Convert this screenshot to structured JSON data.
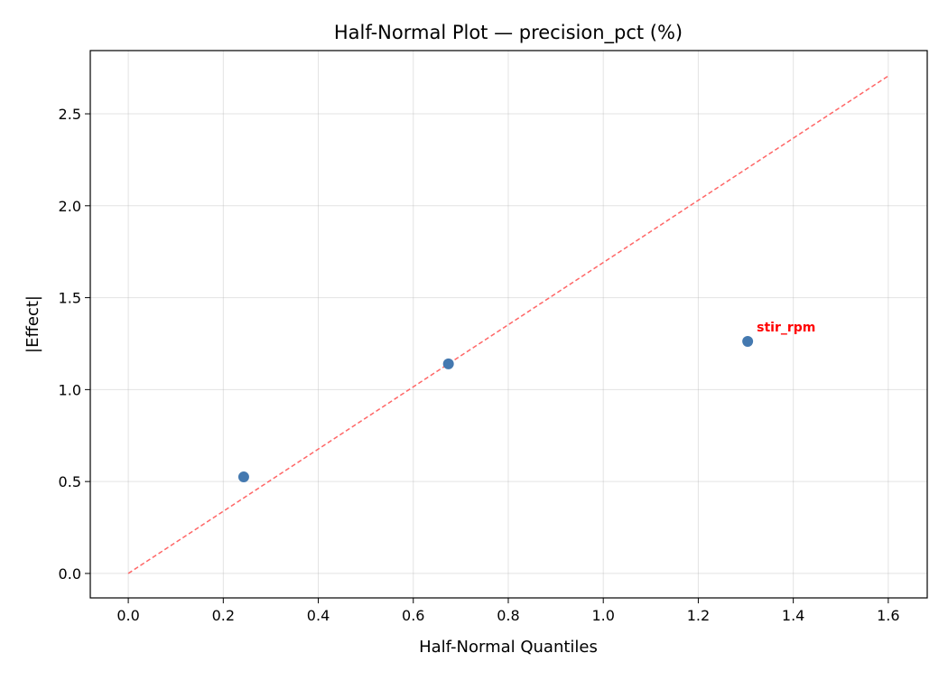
{
  "chart_data": {
    "type": "scatter",
    "title": "Half-Normal Plot — precision_pct (%)",
    "xlabel": "Half-Normal Quantiles",
    "ylabel": "|Effect|",
    "xlim": [
      -0.08,
      1.682
    ],
    "ylim": [
      -0.133,
      2.844
    ],
    "xticks": [
      "0.0",
      "0.2",
      "0.4",
      "0.6",
      "0.8",
      "1.0",
      "1.2",
      "1.4",
      "1.6"
    ],
    "yticks": [
      "0.0",
      "0.5",
      "1.0",
      "1.5",
      "2.0",
      "2.5"
    ],
    "grid": true,
    "points": [
      {
        "x": 0.243,
        "y": 0.525,
        "label": ""
      },
      {
        "x": 0.674,
        "y": 1.14,
        "label": ""
      },
      {
        "x": 1.304,
        "y": 1.262,
        "label": "stir_rpm"
      }
    ],
    "reference_line": {
      "x": [
        0,
        1.6
      ],
      "y": [
        0,
        2.706
      ],
      "style": "dashed"
    },
    "colors": {
      "points": "#4479b0",
      "line": "#ff6666",
      "annotation": "#ff0000"
    }
  }
}
